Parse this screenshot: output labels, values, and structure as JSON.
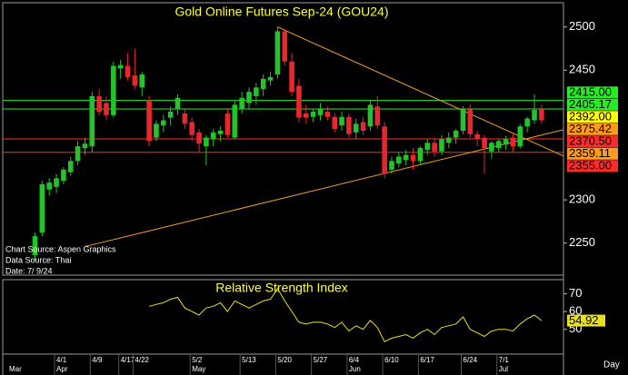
{
  "chart_data": {
    "type": "candlestick",
    "title": "Gold Online Futures Sep-24 (GOU24)",
    "categories": [
      null,
      null,
      null,
      "4/1",
      null,
      null,
      null,
      null,
      "4/9",
      null,
      null,
      null,
      "4/17",
      null,
      "4/22",
      null,
      null,
      null,
      null,
      null,
      null,
      null,
      "5/2",
      null,
      null,
      null,
      null,
      null,
      null,
      "5/13",
      null,
      null,
      null,
      null,
      "5/20",
      null,
      null,
      null,
      null,
      "5/27",
      null,
      null,
      null,
      null,
      "6/4",
      null,
      null,
      null,
      null,
      "6/10",
      null,
      null,
      null,
      null,
      "6/17",
      null,
      null,
      null,
      null,
      null,
      "6/24",
      null,
      null,
      null,
      null,
      "7/1",
      null,
      null,
      null,
      null,
      null,
      null
    ],
    "months": [
      "Mar",
      null,
      null,
      "Apr",
      null,
      null,
      null,
      null,
      null,
      null,
      null,
      null,
      null,
      null,
      null,
      null,
      null,
      null,
      null,
      null,
      null,
      null,
      "May",
      null,
      null,
      null,
      null,
      null,
      null,
      null,
      null,
      null,
      null,
      null,
      null,
      null,
      null,
      null,
      null,
      null,
      null,
      null,
      null,
      null,
      "Jun",
      null,
      null,
      null,
      null,
      null,
      null,
      null,
      null,
      null,
      null,
      null,
      null,
      null,
      null,
      null,
      null,
      null,
      null,
      null,
      null,
      "Jul",
      null,
      null,
      null,
      null,
      null,
      null
    ],
    "open": [
      2236,
      2262,
      2312,
      2315,
      2322,
      2332,
      2345,
      2360,
      2362,
      2420,
      2412,
      2398,
      2452,
      2455,
      2444,
      2430,
      2415,
      2372,
      2386,
      2395,
      2405,
      2400,
      2390,
      2378,
      2362,
      2370,
      2376,
      2400,
      2372,
      2405,
      2412,
      2420,
      2428,
      2438,
      2445,
      2495,
      2460,
      2432,
      2400,
      2396,
      2398,
      2402,
      2396,
      2386,
      2396,
      2378,
      2390,
      2385,
      2408,
      2385,
      2335,
      2342,
      2346,
      2352,
      2345,
      2358,
      2366,
      2356,
      2366,
      2372,
      2380,
      2405,
      2376,
      2372,
      2356,
      2360,
      2364,
      2372,
      2362,
      2385,
      2392,
      2405
    ],
    "high": [
      2262,
      2322,
      2325,
      2330,
      2338,
      2350,
      2368,
      2372,
      2425,
      2428,
      2420,
      2460,
      2462,
      2470,
      2475,
      2448,
      2420,
      2392,
      2398,
      2408,
      2422,
      2405,
      2395,
      2382,
      2375,
      2382,
      2385,
      2405,
      2415,
      2425,
      2430,
      2435,
      2445,
      2448,
      2500,
      2498,
      2470,
      2440,
      2410,
      2405,
      2412,
      2408,
      2400,
      2402,
      2400,
      2394,
      2396,
      2415,
      2420,
      2390,
      2350,
      2355,
      2358,
      2360,
      2362,
      2370,
      2372,
      2375,
      2378,
      2382,
      2408,
      2410,
      2380,
      2375,
      2368,
      2370,
      2374,
      2376,
      2388,
      2396,
      2422,
      2410
    ],
    "low": [
      2230,
      2258,
      2305,
      2308,
      2318,
      2328,
      2340,
      2352,
      2355,
      2398,
      2392,
      2395,
      2440,
      2438,
      2428,
      2420,
      2362,
      2368,
      2378,
      2386,
      2398,
      2382,
      2368,
      2355,
      2340,
      2362,
      2368,
      2372,
      2370,
      2400,
      2405,
      2410,
      2420,
      2432,
      2440,
      2455,
      2420,
      2390,
      2388,
      2390,
      2392,
      2392,
      2378,
      2380,
      2372,
      2370,
      2375,
      2380,
      2382,
      2325,
      2330,
      2338,
      2340,
      2335,
      2340,
      2352,
      2350,
      2352,
      2360,
      2365,
      2376,
      2372,
      2362,
      2330,
      2348,
      2355,
      2358,
      2356,
      2360,
      2378,
      2388,
      2388
    ],
    "close": [
      2258,
      2318,
      2320,
      2325,
      2335,
      2345,
      2362,
      2365,
      2420,
      2402,
      2398,
      2455,
      2456,
      2442,
      2432,
      2445,
      2368,
      2388,
      2392,
      2402,
      2418,
      2388,
      2375,
      2365,
      2372,
      2378,
      2380,
      2375,
      2410,
      2418,
      2425,
      2430,
      2440,
      2442,
      2495,
      2460,
      2425,
      2395,
      2395,
      2402,
      2405,
      2396,
      2382,
      2396,
      2376,
      2388,
      2380,
      2410,
      2386,
      2330,
      2345,
      2350,
      2352,
      2345,
      2360,
      2366,
      2356,
      2370,
      2372,
      2380,
      2405,
      2376,
      2370,
      2360,
      2366,
      2368,
      2370,
      2362,
      2385,
      2394,
      2404,
      2392
    ],
    "up_color": "#22c42a",
    "down_color": "#e8262b",
    "ylim": [
      2213,
      2528
    ],
    "yticks": [
      2250,
      2300,
      2450,
      2500
    ],
    "levels": [
      {
        "value": 2415,
        "label": "2415.00",
        "color": "#22ee22",
        "line": true
      },
      {
        "value": 2405.17,
        "label": "2405.17",
        "color": "#22ee22",
        "line": true
      },
      {
        "value": 2392,
        "label": "2392.00",
        "color": "#ffff00",
        "line": false
      },
      {
        "value": 2375.42,
        "label": "2375.42",
        "color": "#ff9a1a",
        "line": false
      },
      {
        "value": 2370.5,
        "label": "2370.50",
        "color": "#ff2a2a",
        "line": true
      },
      {
        "value": 2359.11,
        "label": "2359.11",
        "color": "#ff9a1a",
        "line": false
      },
      {
        "value": 2355,
        "label": "2355.00",
        "color": "#ff2a2a",
        "line": true
      }
    ],
    "trendlines": [
      {
        "x": [
          34,
          74
        ],
        "y": [
          2500,
          2351
        ],
        "color": "#f0a030"
      },
      {
        "x": [
          7,
          74
        ],
        "y": [
          2246,
          2381
        ],
        "color": "#f0a030"
      }
    ],
    "annotations": [
      "Chart Source: Aspen Graphics",
      "Data Source: Thai",
      "Date: 7/ 9/24"
    ],
    "x_label": "Day",
    "indicator": {
      "type": "line",
      "title": "Relative Strength Index",
      "color": "#e8e020",
      "values": [
        null,
        null,
        null,
        null,
        null,
        null,
        null,
        null,
        null,
        null,
        null,
        null,
        null,
        null,
        null,
        null,
        63,
        64,
        65,
        67,
        68,
        62,
        60,
        58,
        62,
        63,
        65,
        60,
        66,
        64,
        62,
        64,
        66,
        67,
        73,
        66,
        60,
        54,
        53,
        54,
        54,
        53,
        51,
        54,
        49,
        52,
        50,
        55,
        51,
        43,
        45,
        46,
        47,
        45,
        48,
        50,
        47,
        51,
        52,
        53,
        57,
        50,
        48,
        46,
        49,
        50,
        50,
        49,
        53,
        56,
        58,
        54.92
      ],
      "last_value_label": "54.92",
      "ylim": [
        36,
        78
      ],
      "yticks": [
        50,
        60,
        70
      ]
    }
  }
}
